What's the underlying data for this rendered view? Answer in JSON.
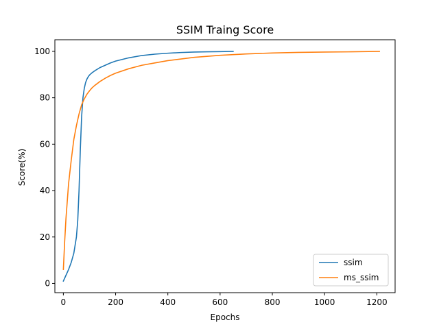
{
  "chart_data": {
    "type": "line",
    "title": "SSIM Traing Score",
    "xlabel": "Epochs",
    "ylabel": "Score(%)",
    "xlim": [
      -32.5,
      1270
    ],
    "ylim": [
      -4,
      105
    ],
    "xticks": [
      0,
      200,
      400,
      600,
      800,
      1000,
      1200
    ],
    "yticks": [
      0,
      20,
      40,
      60,
      80,
      100
    ],
    "grid": false,
    "legend_position": "lower right",
    "series": [
      {
        "name": "ssim",
        "color": "#1f77b4",
        "x": [
          0,
          10,
          20,
          30,
          40,
          50,
          55,
          60,
          65,
          70,
          75,
          80,
          85,
          90,
          95,
          100,
          110,
          120,
          140,
          160,
          180,
          200,
          250,
          300,
          350,
          400,
          450,
          500,
          550,
          600,
          650
        ],
        "y": [
          1,
          3.5,
          6,
          9,
          13,
          20,
          27,
          40,
          58,
          72,
          80,
          84,
          86.5,
          88,
          89,
          89.8,
          90.8,
          91.6,
          93,
          94,
          95,
          95.8,
          97.2,
          98.2,
          98.8,
          99.2,
          99.5,
          99.7,
          99.8,
          99.9,
          100
        ]
      },
      {
        "name": "ms_ssim",
        "color": "#ff7f0e",
        "x": [
          0,
          5,
          10,
          20,
          30,
          40,
          50,
          60,
          70,
          80,
          90,
          100,
          110,
          120,
          140,
          160,
          180,
          200,
          250,
          300,
          350,
          400,
          500,
          600,
          700,
          800,
          900,
          1000,
          1100,
          1210
        ],
        "y": [
          6,
          18,
          28,
          43,
          53,
          62,
          68,
          73,
          77,
          79.5,
          81.5,
          83,
          84.3,
          85.3,
          87,
          88.4,
          89.6,
          90.6,
          92.5,
          94,
          95,
          96,
          97.4,
          98.3,
          98.9,
          99.3,
          99.55,
          99.7,
          99.8,
          100
        ]
      }
    ]
  }
}
